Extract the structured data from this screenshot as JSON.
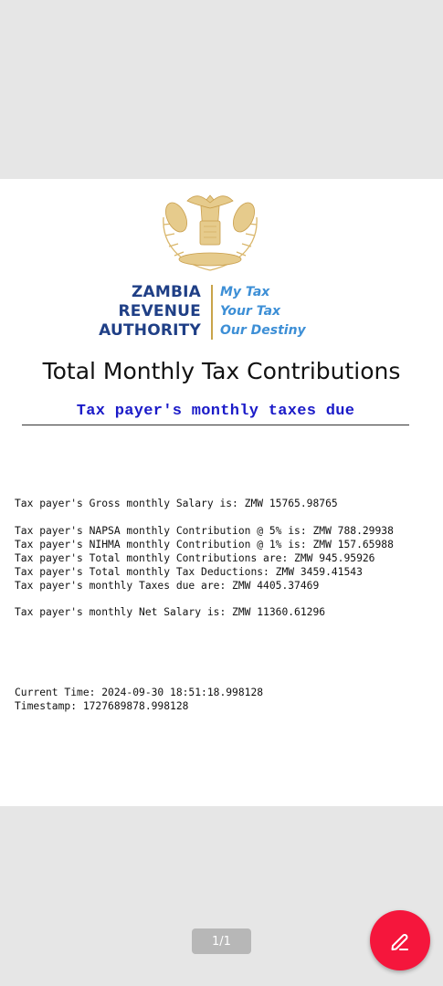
{
  "logo": {
    "org_lines": [
      "ZAMBIA",
      "REVENUE",
      "AUTHORITY"
    ],
    "motto_lines": [
      "My Tax",
      "Your Tax",
      "Our Destiny"
    ]
  },
  "document": {
    "title": "Total Monthly Tax Contributions",
    "subtitle": "Tax payer's monthly taxes due",
    "lines": {
      "gross": "Tax payer's Gross monthly Salary is: ZMW 15765.98765",
      "napsa": "Tax payer's NAPSA monthly Contribution @ 5% is: ZMW 788.29938",
      "nihma": "Tax payer's NIHMA monthly Contribution @ 1% is: ZMW 157.65988",
      "total_contrib": "Tax payer's Total monthly Contributions are: ZMW 945.95926",
      "total_deduct": "Tax payer's Total monthly Tax Deductions: ZMW 3459.41543",
      "taxes_due": "Tax payer's monthly Taxes due are: ZMW 4405.37469",
      "net": "Tax payer's monthly Net Salary is: ZMW 11360.61296",
      "current_time": "Current Time: 2024-09-30 18:51:18.998128",
      "timestamp": "Timestamp: 1727689878.998128"
    }
  },
  "viewer": {
    "page_indicator": "1/1",
    "fab_icon": "edit-pen-icon",
    "fab_color": "#f5163c"
  }
}
